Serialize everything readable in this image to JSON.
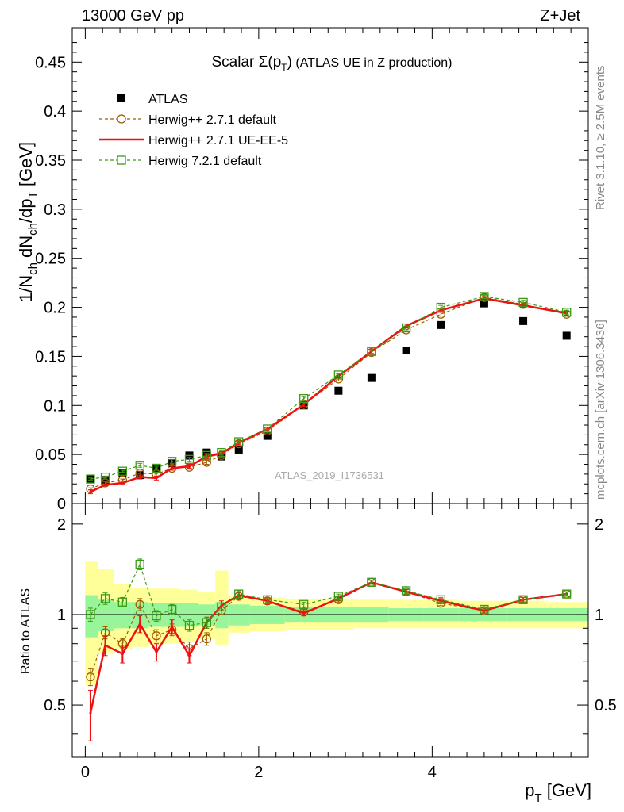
{
  "header": {
    "left": "13000 GeV pp",
    "right": "Z+Jet"
  },
  "plot_title": "Scalar Σ(p_T) (ATLAS UE in Z production)",
  "analysis_label": "ATLAS_2019_I1736531",
  "side_labels": {
    "rivet": "Rivet 3.1.10, ≥ 2.5M events",
    "mcplots": "mcplots.cern.ch [arXiv:1306.3436]"
  },
  "colors": {
    "atlas": "#000000",
    "herwigpp_default": "#a05a00",
    "herwigpp_ueee5": "#ee1111",
    "herwig7": "#3c9a14",
    "band_green": "#99f599",
    "band_yellow": "#ffff99"
  },
  "chart_data": [
    {
      "type": "line",
      "panel": "main",
      "ylabel": "1/N_ch dN_ch/dp_T [GeV]",
      "xlim": [
        -0.15,
        5.8
      ],
      "ylim": [
        0,
        0.485
      ],
      "y_ticks": [
        0,
        0.05,
        0.1,
        0.15,
        0.2,
        0.25,
        0.3,
        0.35,
        0.4,
        0.45
      ],
      "y_tick_labels": [
        "0",
        "0.05",
        "0.1",
        "0.15",
        "0.2",
        "0.25",
        "0.3",
        "0.35",
        "0.4",
        "0.45"
      ],
      "legend_position": "top-left",
      "x": [
        0.06,
        0.23,
        0.43,
        0.63,
        0.82,
        1.0,
        1.2,
        1.4,
        1.57,
        1.77,
        2.1,
        2.52,
        2.92,
        3.3,
        3.7,
        4.1,
        4.6,
        5.05,
        5.55
      ],
      "series": [
        {
          "name": "ATLAS",
          "style": "marker-square",
          "values": [
            0.025,
            0.024,
            0.031,
            0.029,
            0.036,
            0.041,
            0.049,
            0.052,
            0.048,
            0.055,
            0.069,
            0.1,
            0.115,
            0.128,
            0.156,
            0.182,
            0.204,
            0.186,
            0.171
          ]
        },
        {
          "name": "Herwig++ 2.7.1 default",
          "style": "dashed-circle",
          "values": [
            0.015,
            0.021,
            0.024,
            0.031,
            0.03,
            0.036,
            0.037,
            0.042,
            0.049,
            0.061,
            0.074,
            0.101,
            0.127,
            0.154,
            0.177,
            0.193,
            0.21,
            0.203,
            0.193
          ],
          "errors": [
            0.001,
            0.001,
            0.001,
            0.002,
            0.002,
            0.002,
            0.002,
            0.002,
            0.002,
            0.002,
            0.002,
            0.002,
            0.002,
            0.002,
            0.002,
            0.002,
            0.002,
            0.002,
            0.002
          ]
        },
        {
          "name": "Herwig++ 2.7.1 UE-EE-5",
          "style": "solid",
          "values": [
            0.012,
            0.019,
            0.021,
            0.027,
            0.026,
            0.036,
            0.038,
            0.048,
            0.051,
            0.062,
            0.076,
            0.101,
            0.13,
            0.155,
            0.181,
            0.197,
            0.209,
            0.202,
            0.194
          ],
          "errors": [
            0.002,
            0.001,
            0.001,
            0.002,
            0.002,
            0.002,
            0.002,
            0.002,
            0.002,
            0.002,
            0.002,
            0.002,
            0.002,
            0.002,
            0.002,
            0.002,
            0.002,
            0.002,
            0.002
          ]
        },
        {
          "name": "Herwig 7.2.1 default",
          "style": "dashed-square",
          "values": [
            0.025,
            0.027,
            0.033,
            0.039,
            0.036,
            0.043,
            0.045,
            0.049,
            0.052,
            0.063,
            0.076,
            0.107,
            0.131,
            0.155,
            0.179,
            0.2,
            0.211,
            0.205,
            0.195
          ],
          "errors": [
            0.001,
            0.001,
            0.001,
            0.002,
            0.002,
            0.002,
            0.002,
            0.002,
            0.002,
            0.002,
            0.002,
            0.002,
            0.002,
            0.002,
            0.002,
            0.002,
            0.002,
            0.002,
            0.002
          ]
        }
      ]
    },
    {
      "type": "line",
      "panel": "ratio",
      "xlabel": "p_T [GeV]",
      "ylabel": "Ratio to ATLAS",
      "xlim": [
        -0.15,
        5.8
      ],
      "ylim": [
        0.335,
        2.34
      ],
      "x_ticks": [
        0,
        2,
        4
      ],
      "x_tick_labels": [
        "0",
        "2",
        "4"
      ],
      "y_ticks": [
        0.5,
        1,
        2
      ],
      "y_tick_labels": [
        "0.5",
        "1",
        "2"
      ],
      "x": [
        0.06,
        0.23,
        0.43,
        0.63,
        0.82,
        1.0,
        1.2,
        1.4,
        1.57,
        1.77,
        2.1,
        2.52,
        2.92,
        3.3,
        3.7,
        4.1,
        4.6,
        5.05,
        5.55
      ],
      "bin_edges": [
        0.0,
        0.15,
        0.33,
        0.53,
        0.73,
        0.91,
        1.09,
        1.3,
        1.5,
        1.65,
        1.9,
        2.3,
        2.73,
        3.1,
        3.5,
        3.9,
        4.3,
        4.85,
        5.3,
        5.8
      ],
      "bands": {
        "green_low": [
          0.84,
          0.88,
          0.9,
          0.9,
          0.91,
          0.91,
          0.91,
          0.92,
          0.9,
          0.92,
          0.93,
          0.94,
          0.94,
          0.94,
          0.95,
          0.95,
          0.95,
          0.95,
          0.95
        ],
        "green_high": [
          1.16,
          1.12,
          1.1,
          1.1,
          1.09,
          1.09,
          1.09,
          1.08,
          1.1,
          1.08,
          1.07,
          1.06,
          1.06,
          1.06,
          1.05,
          1.05,
          1.05,
          1.05,
          1.05
        ],
        "yellow_low": [
          0.58,
          0.74,
          0.77,
          0.78,
          0.79,
          0.8,
          0.81,
          0.83,
          0.79,
          0.87,
          0.88,
          0.89,
          0.89,
          0.9,
          0.9,
          0.9,
          0.9,
          0.9,
          0.9
        ],
        "yellow_high": [
          1.5,
          1.42,
          1.26,
          1.23,
          1.22,
          1.22,
          1.21,
          1.19,
          1.4,
          1.16,
          1.14,
          1.13,
          1.13,
          1.12,
          1.12,
          1.12,
          1.11,
          1.11,
          1.1
        ]
      },
      "series": [
        {
          "name": "Herwig++ 2.7.1 default",
          "style": "dashed-circle",
          "values": [
            0.62,
            0.87,
            0.8,
            1.08,
            0.85,
            0.89,
            0.77,
            0.83,
            1.03,
            1.15,
            1.11,
            1.02,
            1.12,
            1.28,
            1.19,
            1.09,
            1.03,
            1.12,
            1.17
          ],
          "errors": [
            0.04,
            0.04,
            0.03,
            0.05,
            0.04,
            0.04,
            0.04,
            0.04,
            0.03,
            0.03,
            0.02,
            0.02,
            0.02,
            0.02,
            0.02,
            0.02,
            0.02,
            0.02,
            0.02
          ]
        },
        {
          "name": "Herwig++ 2.7.1 UE-EE-5",
          "style": "solid",
          "values": [
            0.47,
            0.79,
            0.74,
            0.93,
            0.75,
            0.91,
            0.73,
            0.94,
            1.07,
            1.16,
            1.11,
            1.01,
            1.13,
            1.28,
            1.19,
            1.11,
            1.03,
            1.12,
            1.17
          ],
          "errors": [
            0.09,
            0.06,
            0.05,
            0.06,
            0.05,
            0.05,
            0.04,
            0.04,
            0.04,
            0.03,
            0.03,
            0.02,
            0.02,
            0.02,
            0.02,
            0.02,
            0.02,
            0.02,
            0.02
          ]
        },
        {
          "name": "Herwig 7.2.1 default",
          "style": "dashed-square",
          "values": [
            1.0,
            1.13,
            1.1,
            1.47,
            0.99,
            1.04,
            0.92,
            0.94,
            1.06,
            1.17,
            1.12,
            1.08,
            1.15,
            1.28,
            1.2,
            1.12,
            1.04,
            1.12,
            1.17
          ],
          "errors": [
            0.05,
            0.05,
            0.04,
            0.06,
            0.04,
            0.04,
            0.04,
            0.04,
            0.03,
            0.03,
            0.02,
            0.02,
            0.02,
            0.02,
            0.02,
            0.02,
            0.02,
            0.02,
            0.02
          ]
        }
      ]
    }
  ]
}
